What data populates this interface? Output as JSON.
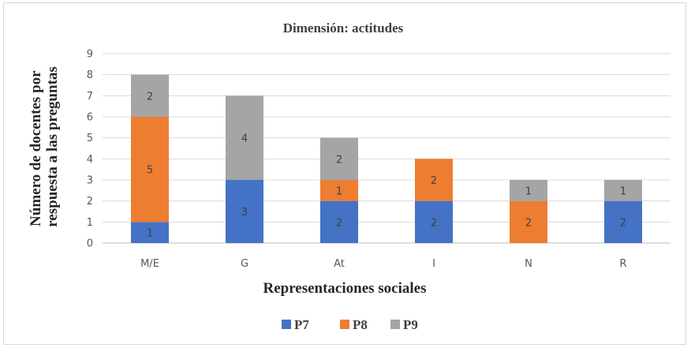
{
  "chart_data": {
    "type": "bar",
    "stacked": true,
    "title": "Dimensión: actitudes",
    "xlabel": "Representaciones sociales",
    "ylabel": [
      "Número de docentes por",
      "respuesta a las preguntas"
    ],
    "categories": [
      "M/E",
      "G",
      "At",
      "I",
      "N",
      "R"
    ],
    "ylim": [
      0,
      9
    ],
    "yticks": [
      "0",
      "1",
      "2",
      "3",
      "4",
      "5",
      "6",
      "7",
      "8",
      "9"
    ],
    "grid": true,
    "legend_position": "bottom",
    "series": [
      {
        "name": "P7",
        "color": "#4472c4",
        "values": [
          1,
          3,
          2,
          2,
          0,
          2
        ]
      },
      {
        "name": "P8",
        "color": "#ed7d31",
        "values": [
          5,
          0,
          1,
          2,
          2,
          0
        ]
      },
      {
        "name": "P9",
        "color": "#a5a5a5",
        "values": [
          2,
          4,
          2,
          0,
          1,
          1
        ]
      }
    ]
  }
}
